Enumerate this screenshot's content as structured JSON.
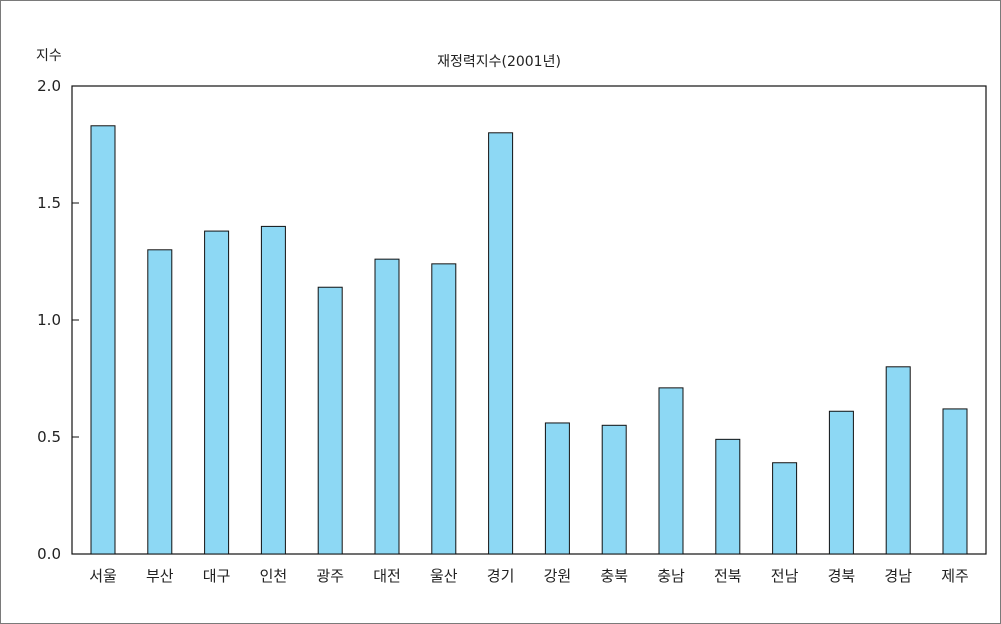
{
  "chart_data": {
    "type": "bar",
    "title": "재정력지수(2001년)",
    "ylabel": "지수",
    "xlabel": "",
    "categories": [
      "서울",
      "부산",
      "대구",
      "인천",
      "광주",
      "대전",
      "울산",
      "경기",
      "강원",
      "충북",
      "충남",
      "전북",
      "전남",
      "경북",
      "경남",
      "제주"
    ],
    "values": [
      1.83,
      1.3,
      1.38,
      1.4,
      1.14,
      1.26,
      1.24,
      1.8,
      0.56,
      0.55,
      0.71,
      0.49,
      0.39,
      0.61,
      0.8,
      0.62
    ],
    "ylim": [
      0,
      2.0
    ],
    "yticks": [
      "0.0",
      "0.5",
      "1.0",
      "1.5",
      "2.0"
    ],
    "grid": false,
    "colors": {
      "bar_fill": "#8dd8f4",
      "bar_stroke": "#111111",
      "axis": "#111111"
    }
  }
}
